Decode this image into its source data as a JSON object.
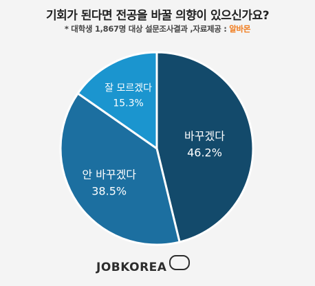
{
  "header": {
    "title": "기회가 된다면 전공을 바꿀 의향이 있으신가요?",
    "subtitle_prefix": "* 대학생 1,867명 대상 설문조사결과 ,자료제공 : ",
    "subtitle_source": "알바몬"
  },
  "chart_data": {
    "type": "pie",
    "start_angle_deg": 0,
    "direction": "clockwise",
    "slices": [
      {
        "label": "바꾸겠다",
        "value": 46.2,
        "value_label": "46.2%",
        "color": "#134a6b"
      },
      {
        "label": "안 바꾸겠다",
        "value": 38.5,
        "value_label": "38.5%",
        "color": "#1c6fa0"
      },
      {
        "label": "잘 모르겠다",
        "value": 15.3,
        "value_label": "15.3%",
        "color": "#1b95cf"
      }
    ],
    "stroke_color": "#ffffff"
  },
  "logo": {
    "text": "JOBKOREA"
  }
}
